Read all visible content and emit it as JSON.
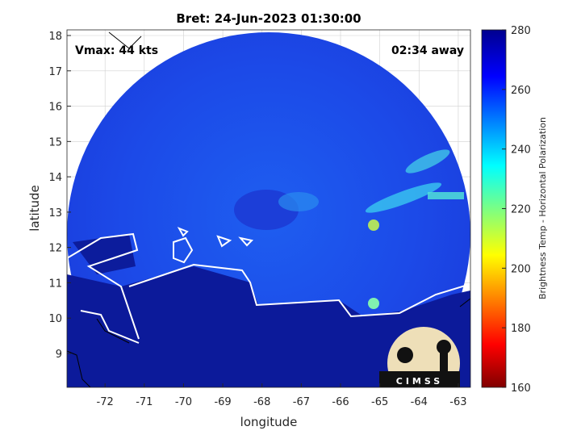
{
  "title": "Bret: 24-Jun-2023 01:30:00",
  "annotations": {
    "vmax": "Vmax: 44 kts",
    "time_away": "02:34 away"
  },
  "x_axis": {
    "label": "longitude",
    "lim": [
      -72.97,
      -62.69
    ],
    "ticks": [
      -72,
      -71,
      -70,
      -69,
      -68,
      -67,
      -66,
      -65,
      -64,
      -63
    ]
  },
  "y_axis": {
    "label": "latitude",
    "lim": [
      8.04,
      18.16
    ],
    "ticks": [
      9,
      10,
      11,
      12,
      13,
      14,
      15,
      16,
      17,
      18
    ]
  },
  "colorbar": {
    "label": "Brightness Temp - Horizontal Polarization",
    "lim": [
      160,
      280
    ],
    "ticks": [
      160,
      180,
      200,
      220,
      240,
      260,
      280
    ]
  },
  "logo": "CIMSS"
}
